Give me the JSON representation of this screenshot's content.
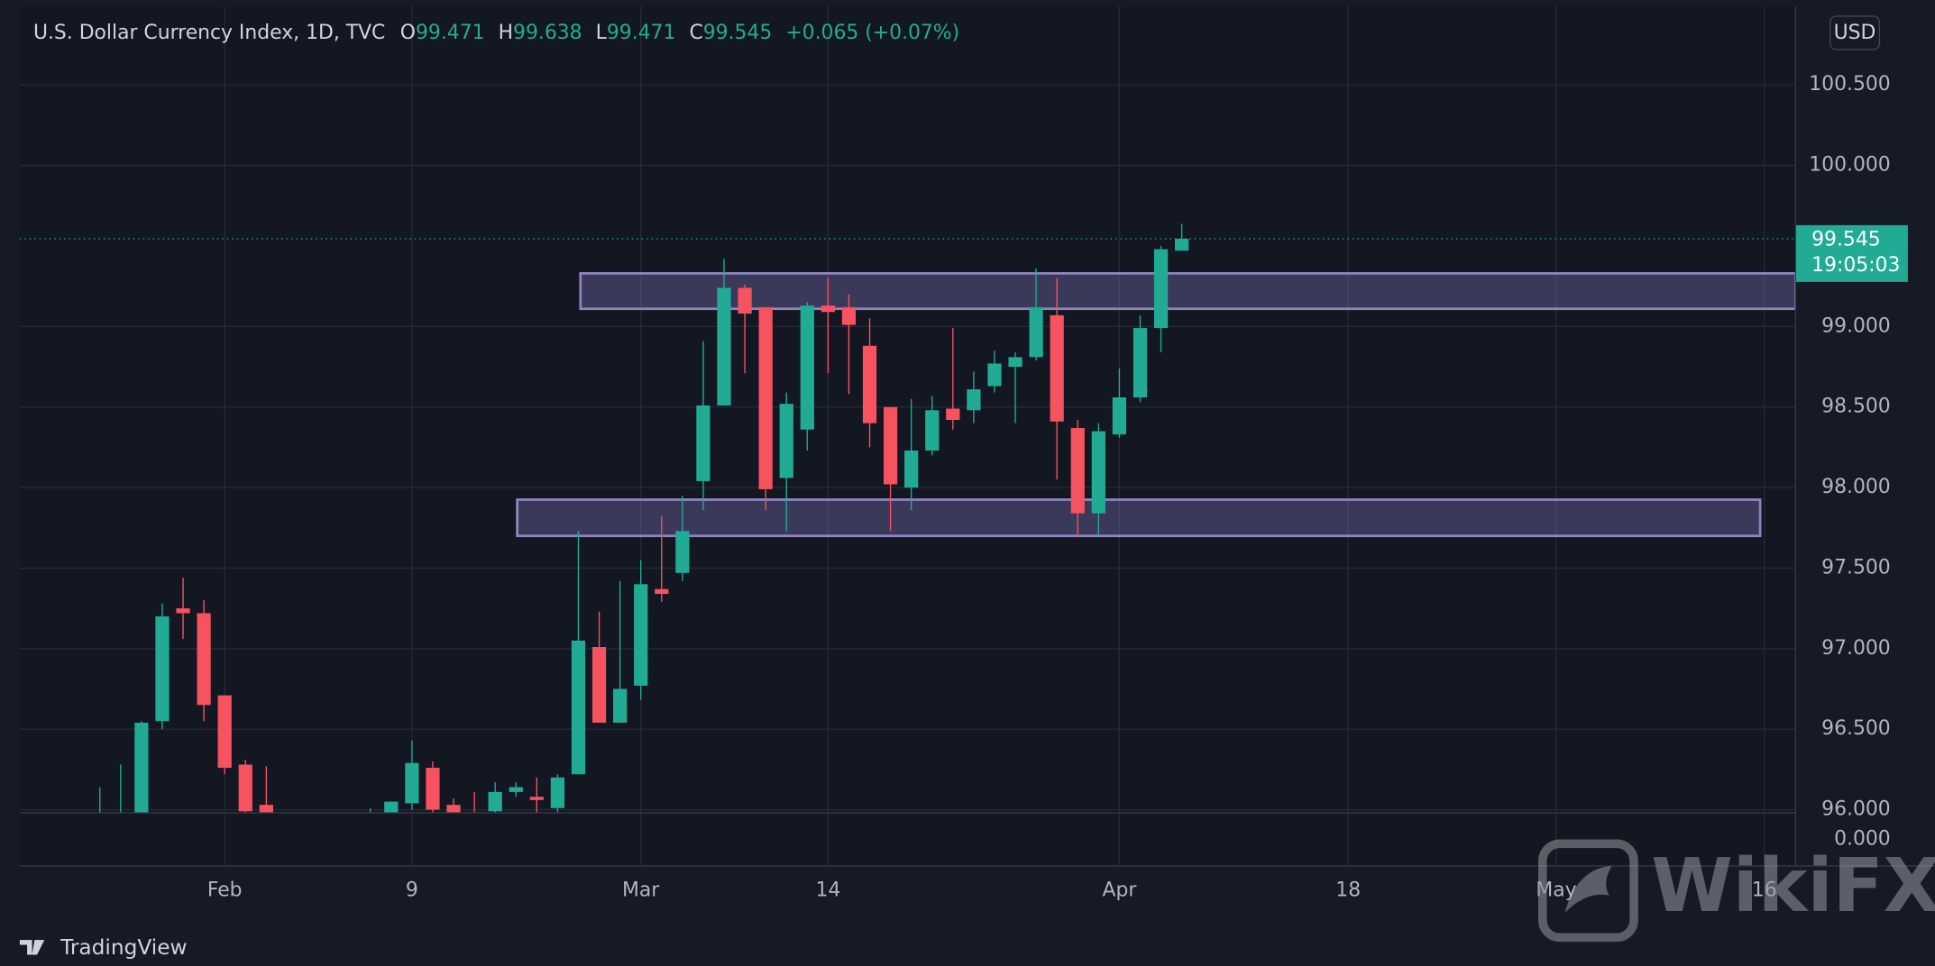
{
  "chart_data": {
    "type": "candlestick",
    "title": "U.S. Dollar Currency Index, 1D, TVC",
    "currency": "USD",
    "header_labels": [
      "O",
      "H",
      "L",
      "C"
    ],
    "change": "+0.065 (+0.07%)",
    "countdown": "19:05:03",
    "brand": "TradingView",
    "watermark": "WikiFX",
    "up_color": "#22ab94",
    "down_color": "#f7525f",
    "grid": true,
    "x": [
      -6,
      -5,
      -4,
      -3,
      -2,
      -1,
      0,
      1,
      2,
      7,
      8,
      9,
      10,
      11,
      12,
      13,
      14,
      15,
      16,
      17,
      18,
      19,
      20,
      21,
      22,
      23,
      24,
      25,
      26,
      27,
      28,
      29,
      30,
      31,
      32,
      33,
      34,
      35,
      36,
      37,
      38,
      39,
      40,
      41,
      42,
      43,
      44,
      45,
      46
    ],
    "open": [
      95.9,
      95.92,
      95.9,
      96.55,
      97.25,
      97.22,
      96.71,
      96.28,
      96.03,
      95.95,
      95.98,
      96.04,
      96.26,
      96.03,
      95.95,
      95.99,
      96.11,
      96.08,
      96.01,
      96.22,
      97.01,
      96.54,
      96.77,
      97.37,
      97.47,
      98.04,
      98.51,
      99.24,
      99.12,
      98.06,
      98.36,
      99.13,
      99.12,
      98.88,
      98.5,
      98.0,
      98.23,
      98.49,
      98.48,
      98.63,
      98.75,
      98.81,
      99.07,
      98.37,
      97.84,
      98.33,
      98.56,
      98.99,
      99.471
    ],
    "high": [
      96.14,
      96.28,
      96.55,
      97.28,
      97.44,
      97.3,
      96.71,
      96.31,
      96.27,
      96.01,
      96.05,
      96.43,
      96.3,
      96.07,
      96.11,
      96.17,
      96.17,
      96.2,
      96.22,
      97.73,
      97.23,
      97.42,
      97.55,
      97.82,
      97.95,
      98.91,
      99.42,
      99.26,
      99.12,
      98.59,
      99.15,
      99.3,
      99.2,
      99.05,
      98.5,
      98.55,
      98.57,
      98.99,
      98.72,
      98.85,
      98.84,
      99.36,
      99.3,
      98.42,
      98.4,
      98.74,
      99.07,
      99.5,
      99.638
    ],
    "low": [
      95.85,
      95.85,
      95.85,
      96.5,
      97.06,
      96.55,
      96.22,
      95.95,
      95.9,
      95.9,
      95.95,
      96.0,
      95.98,
      95.95,
      95.85,
      95.97,
      96.08,
      95.98,
      95.98,
      96.22,
      96.54,
      96.54,
      96.68,
      97.29,
      97.42,
      97.86,
      98.51,
      98.71,
      97.86,
      97.73,
      98.23,
      98.71,
      98.58,
      98.25,
      97.73,
      97.86,
      98.2,
      98.36,
      98.4,
      98.59,
      98.4,
      98.79,
      98.05,
      97.69,
      97.7,
      98.31,
      98.53,
      98.84,
      99.471
    ],
    "close": [
      95.95,
      95.96,
      96.54,
      97.2,
      97.22,
      96.65,
      96.26,
      95.99,
      95.97,
      95.97,
      96.05,
      96.29,
      96.0,
      95.98,
      95.9,
      96.11,
      96.14,
      96.06,
      96.2,
      97.05,
      96.54,
      96.75,
      97.4,
      97.34,
      97.73,
      98.51,
      99.24,
      99.08,
      97.99,
      98.52,
      99.13,
      99.09,
      99.01,
      98.4,
      98.02,
      98.23,
      98.48,
      98.42,
      98.61,
      98.77,
      98.81,
      99.12,
      98.41,
      97.84,
      98.35,
      98.56,
      98.99,
      99.48,
      99.545
    ],
    "zones": [
      {
        "x": [
          17.1,
          75.5
        ],
        "y": [
          99.11,
          99.33
        ]
      },
      {
        "x": [
          14.06,
          73.8
        ],
        "y": [
          97.7,
          97.925
        ]
      }
    ],
    "xlim": [
      -9.85,
      75.5
    ],
    "xticks": [
      {
        "value": 0,
        "label": "Feb"
      },
      9,
      {
        "value": 20,
        "label": "Mar"
      },
      {
        "value": 29,
        "label": "14"
      },
      {
        "value": 43,
        "label": "Apr"
      },
      {
        "value": 54,
        "label": "18"
      },
      {
        "value": 64,
        "label": "May"
      },
      {
        "value": 74,
        "label": "16"
      }
    ],
    "ylim": [
      95.98,
      100.988
    ],
    "yticks": [
      {
        "value": 96,
        "label": "96.000"
      },
      {
        "value": 96.5,
        "label": "96.500"
      },
      {
        "value": 97,
        "label": "97.000"
      },
      {
        "value": 97.5,
        "label": "97.500"
      },
      {
        "value": 98,
        "label": "98.000"
      },
      {
        "value": 98.5,
        "label": "98.500"
      },
      {
        "value": 99,
        "label": "99.000"
      },
      {
        "value": 100,
        "label": "100.000"
      },
      {
        "value": 100.5,
        "label": "100.500"
      }
    ],
    "y2lim": [
      -1,
      1
    ],
    "y2ticks": [
      {
        "value": 0,
        "label": "0.000"
      }
    ]
  }
}
